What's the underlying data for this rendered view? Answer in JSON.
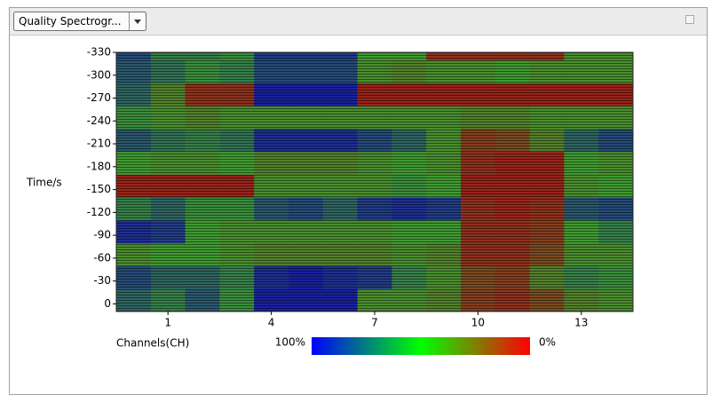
{
  "toolbar": {
    "dropdown": "Quality Spectrogr..."
  },
  "chart_data": {
    "type": "heatmap",
    "xlabel": "Channels(CH)",
    "ylabel": "Time/s",
    "x": [
      0,
      1,
      2,
      3,
      4,
      5,
      6,
      7,
      8,
      9,
      10,
      11,
      12,
      13,
      14
    ],
    "y": [
      -5,
      -35,
      -65,
      -95,
      -125,
      -155,
      -185,
      -215,
      -245,
      -275,
      -305,
      -335
    ],
    "values": [
      [
        70,
        60,
        75,
        55,
        95,
        95,
        95,
        45,
        45,
        40,
        15,
        10,
        20,
        40,
        45
      ],
      [
        80,
        70,
        70,
        60,
        90,
        95,
        90,
        85,
        60,
        45,
        20,
        15,
        40,
        60,
        55
      ],
      [
        45,
        50,
        50,
        45,
        40,
        40,
        40,
        40,
        45,
        40,
        10,
        10,
        20,
        45,
        45
      ],
      [
        90,
        85,
        50,
        45,
        45,
        45,
        45,
        45,
        50,
        50,
        10,
        10,
        15,
        50,
        60
      ],
      [
        60,
        70,
        55,
        55,
        75,
        80,
        70,
        85,
        90,
        85,
        10,
        5,
        10,
        75,
        80
      ],
      [
        5,
        5,
        5,
        5,
        45,
        45,
        45,
        45,
        55,
        50,
        5,
        5,
        5,
        45,
        50
      ],
      [
        50,
        45,
        45,
        50,
        40,
        40,
        40,
        45,
        50,
        45,
        10,
        5,
        5,
        50,
        45
      ],
      [
        75,
        65,
        60,
        65,
        90,
        90,
        90,
        80,
        70,
        45,
        15,
        20,
        40,
        70,
        80
      ],
      [
        55,
        45,
        40,
        45,
        45,
        45,
        45,
        45,
        45,
        45,
        40,
        40,
        45,
        45,
        45
      ],
      [
        70,
        40,
        10,
        10,
        95,
        95,
        95,
        5,
        5,
        5,
        5,
        5,
        5,
        5,
        5
      ],
      [
        75,
        65,
        55,
        60,
        80,
        80,
        80,
        45,
        40,
        45,
        45,
        50,
        45,
        45,
        45
      ],
      [
        80,
        60,
        60,
        55,
        85,
        85,
        85,
        50,
        50,
        10,
        10,
        10,
        10,
        45,
        45
      ]
    ],
    "xlim": [
      -0.5,
      14.5
    ],
    "xticks": [
      1,
      4,
      7,
      10,
      13
    ],
    "ylim": [
      10,
      -330
    ],
    "yticks": [
      0,
      -30,
      -60,
      -90,
      -120,
      -150,
      -180,
      -210,
      -240,
      -270,
      -300,
      -330
    ],
    "cell_colors": [
      "#a01818",
      "#3f9a30",
      "#1414a8"
    ],
    "colorbar_colors": [
      "#ff0000",
      "#00ff00",
      "#0000ff"
    ],
    "colorbar_ticks": [
      {
        "value": 100,
        "label": "100%"
      },
      {
        "value": 0,
        "label": "0%"
      }
    ]
  }
}
